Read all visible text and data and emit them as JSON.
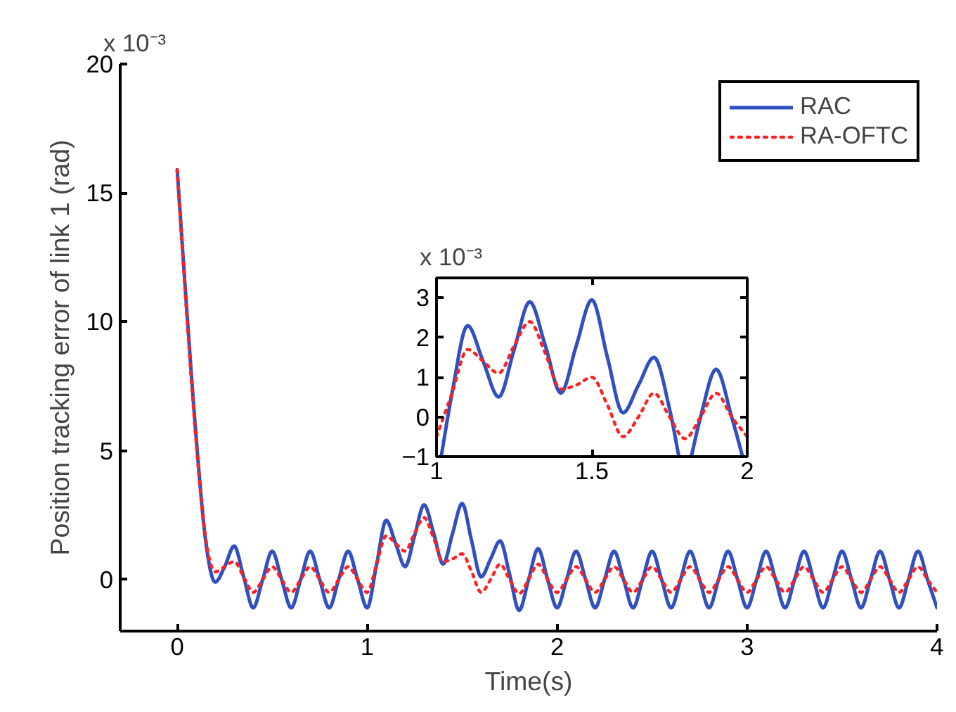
{
  "chart_data": [
    {
      "type": "line",
      "xlabel": "Time(s)",
      "ylabel": "Position tracking error of link 1 (rad)",
      "annotations": [
        "x 10⁻³"
      ],
      "x": [
        0,
        0.05,
        0.1,
        0.15,
        0.2,
        0.25,
        0.3,
        0.35,
        0.4,
        0.45,
        0.5,
        0.55,
        0.6,
        0.65,
        0.7,
        0.75,
        0.8,
        0.85,
        0.9,
        0.95,
        1.0,
        1.05,
        1.1,
        1.15,
        1.2,
        1.25,
        1.3,
        1.35,
        1.4,
        1.45,
        1.5,
        1.55,
        1.6,
        1.65,
        1.7,
        1.75,
        1.8,
        1.85,
        1.9,
        1.95,
        2.0,
        2.05,
        2.1,
        2.15,
        2.2,
        2.25,
        2.3,
        2.35,
        2.4,
        2.45,
        2.5,
        2.55,
        2.6,
        2.65,
        2.7,
        2.75,
        2.8,
        2.85,
        2.9,
        2.95,
        3.0,
        3.05,
        3.1,
        3.15,
        3.2,
        3.25,
        3.3,
        3.35,
        3.4,
        3.45,
        3.5,
        3.55,
        3.6,
        3.65,
        3.7,
        3.75,
        3.8,
        3.85,
        3.9,
        3.95,
        4.0
      ],
      "series": [
        {
          "name": "RAC",
          "color": "#3050bf",
          "line_style": "solid",
          "values": [
            15.9,
            10.5,
            5.5,
            1.5,
            -0.1,
            0.5,
            1.3,
            0.1,
            -1.1,
            0,
            1.1,
            0,
            -1.1,
            0,
            1.1,
            0,
            -1.1,
            0,
            1.1,
            0,
            -1.1,
            0.6,
            2.3,
            1.4,
            0.5,
            1.7,
            2.9,
            1.8,
            0.6,
            1.8,
            2.95,
            1.5,
            0.1,
            0.8,
            1.5,
            0.2,
            -1.2,
            0,
            1.2,
            0,
            -1.1,
            0,
            1.1,
            0,
            -1.1,
            0,
            1.1,
            0,
            -1.1,
            0,
            1.1,
            0,
            -1.1,
            0,
            1.1,
            0,
            -1.1,
            0,
            1.1,
            0,
            -1.1,
            0,
            1.1,
            0,
            -1.1,
            0,
            1.1,
            0,
            -1.1,
            0,
            1.1,
            0,
            -1.1,
            0,
            1.1,
            0,
            -1.1,
            0,
            1.1,
            0,
            -1.1
          ]
        },
        {
          "name": "RA-OFTC",
          "color": "#ff2020",
          "line_style": "dotted",
          "values": [
            15.9,
            10.3,
            5.3,
            1.6,
            0.3,
            0.5,
            0.7,
            0.1,
            -0.5,
            0,
            0.5,
            0,
            -0.5,
            0,
            0.5,
            0,
            -0.5,
            0,
            0.5,
            0,
            -0.5,
            0.6,
            1.7,
            1.4,
            1.1,
            1.8,
            2.4,
            1.6,
            0.7,
            0.8,
            1.0,
            0.3,
            -0.5,
            0,
            0.6,
            0,
            -0.55,
            0,
            0.6,
            0,
            -0.5,
            0,
            0.5,
            0,
            -0.5,
            0,
            0.5,
            0,
            -0.5,
            0,
            0.5,
            0,
            -0.5,
            0,
            0.5,
            0,
            -0.5,
            0,
            0.5,
            0,
            -0.5,
            0,
            0.5,
            0,
            -0.5,
            0,
            0.5,
            0,
            -0.5,
            0,
            0.5,
            0,
            -0.5,
            0,
            0.5,
            0,
            -0.5,
            0,
            0.5,
            0,
            -0.5
          ]
        }
      ],
      "xlim": [
        -0.3,
        4
      ],
      "ylim": [
        -2,
        20
      ],
      "xticks": [
        0,
        1,
        2,
        3,
        4
      ],
      "yticks": [
        0,
        5,
        10,
        15,
        20
      ],
      "grid": false,
      "legend": "top right"
    },
    {
      "type": "line",
      "annotations": [
        "x 10⁻³"
      ],
      "series": [
        {
          "color": "#3050bf",
          "line_style": "solid",
          "x": [
            1.015,
            1.05,
            1.1,
            1.15,
            1.2,
            1.25,
            1.3,
            1.35,
            1.4,
            1.45,
            1.5,
            1.55,
            1.6,
            1.65,
            1.7,
            1.75,
            1.78,
            1.8,
            1.82,
            1.85,
            1.9,
            1.95,
            1.985
          ],
          "values": [
            -1,
            0.6,
            2.3,
            1.4,
            0.5,
            1.7,
            2.9,
            1.8,
            0.6,
            1.8,
            2.95,
            1.5,
            0.1,
            0.8,
            1.5,
            0.2,
            -1,
            null,
            -1,
            0,
            1.2,
            0,
            -1
          ]
        },
        {
          "color": "#ff2020",
          "line_style": "dotted",
          "x": [
            1.0,
            1.05,
            1.1,
            1.15,
            1.2,
            1.25,
            1.3,
            1.35,
            1.4,
            1.45,
            1.5,
            1.55,
            1.6,
            1.65,
            1.7,
            1.75,
            1.8,
            1.85,
            1.9,
            1.95,
            2.0
          ],
          "values": [
            -0.5,
            0.6,
            1.7,
            1.4,
            1.1,
            1.8,
            2.4,
            1.6,
            0.7,
            0.8,
            1.0,
            0.3,
            -0.5,
            0,
            0.6,
            0,
            -0.55,
            0,
            0.6,
            0,
            -0.5
          ]
        }
      ],
      "xlim": [
        1,
        2
      ],
      "ylim": [
        -1,
        3.5
      ],
      "xticks": [
        1,
        1.5,
        2
      ],
      "yticks": [
        -1,
        0,
        1,
        2,
        3
      ],
      "grid": false
    }
  ]
}
